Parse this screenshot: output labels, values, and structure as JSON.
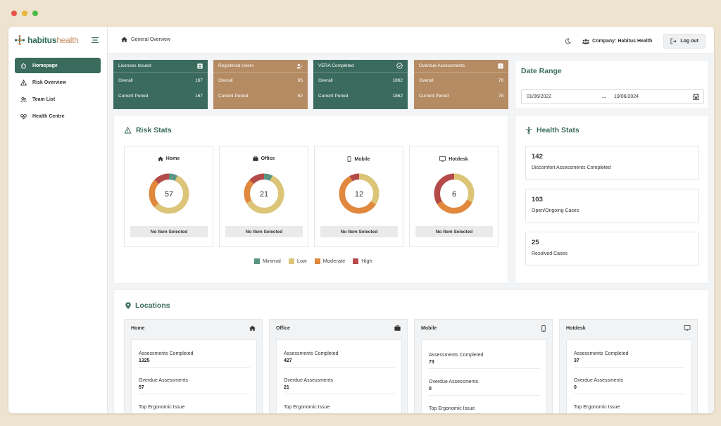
{
  "brand": {
    "name_bold": "habitus",
    "name_light": "health"
  },
  "sidebar": {
    "items": [
      {
        "label": "Homepage",
        "icon": "home-icon",
        "active": true
      },
      {
        "label": "Risk Overview",
        "icon": "warning-icon",
        "active": false
      },
      {
        "label": "Team List",
        "icon": "users-icon",
        "active": false
      },
      {
        "label": "Health Centre",
        "icon": "heart-icon",
        "active": false
      }
    ]
  },
  "header": {
    "breadcrumb": "General Overview",
    "company": "Company: Habitus Health",
    "logout": "Log out"
  },
  "kpis": [
    {
      "title": "Licenses Issued",
      "overall_label": "Overall",
      "overall": "167",
      "period_label": "Current Period",
      "period": "167",
      "color": "#3a6b5c"
    },
    {
      "title": "Registered Users",
      "overall_label": "Overall",
      "overall": "65",
      "period_label": "Current Period",
      "period": "62",
      "color": "#b58b63"
    },
    {
      "title": "VERA Completed",
      "overall_label": "Overall",
      "overall": "1862",
      "period_label": "Current Period",
      "period": "1862",
      "color": "#3a6b5c"
    },
    {
      "title": "Overdue Assessments",
      "overall_label": "Overall",
      "overall": "78",
      "period_label": "Current Period",
      "period": "78",
      "color": "#b58b63"
    }
  ],
  "date_range": {
    "title": "Date Range",
    "start": "01/06/2022",
    "end": "19/06/2024"
  },
  "risk_stats": {
    "title": "Risk Stats",
    "boxes": [
      {
        "title": "Home",
        "total": "57",
        "footer": "No Item Selected",
        "segments": [
          0.07,
          0.56,
          0.24,
          0.13
        ]
      },
      {
        "title": "Office",
        "total": "21",
        "footer": "No Item Selected",
        "segments": [
          0.07,
          0.6,
          0.2,
          0.13
        ]
      },
      {
        "title": "Mobile",
        "total": "12",
        "footer": "No Item Selected",
        "segments": [
          0.0,
          0.34,
          0.58,
          0.08
        ]
      },
      {
        "title": "Hotdesk",
        "total": "6",
        "footer": "No Item Selected",
        "segments": [
          0.0,
          0.32,
          0.34,
          0.34
        ]
      }
    ],
    "legend": [
      {
        "label": "Minimal",
        "color": "#5b9484"
      },
      {
        "label": "Low",
        "color": "#dcc478"
      },
      {
        "label": "Moderate",
        "color": "#e0883d"
      },
      {
        "label": "High",
        "color": "#b54a4a"
      }
    ]
  },
  "health_stats": {
    "title": "Health Stats",
    "items": [
      {
        "value": "142",
        "label": "Discomfort Assessments Completed"
      },
      {
        "value": "103",
        "label": "Open/Ongoing Cases"
      },
      {
        "value": "25",
        "label": "Resolved Cases"
      }
    ]
  },
  "locations": {
    "title": "Locations",
    "columns": [
      {
        "name": "Home",
        "icon": "home-icon",
        "assessments_label": "Assessments Completed",
        "assessments": "1325",
        "overdue_label": "Overdue Assessments",
        "overdue": "57",
        "issue_label": "Top Ergonomic Issue"
      },
      {
        "name": "Office",
        "icon": "briefcase-icon",
        "assessments_label": "Assessments Completed",
        "assessments": "427",
        "overdue_label": "Overdue Assessments",
        "overdue": "21",
        "issue_label": "Top Ergonomic Issue"
      },
      {
        "name": "Mobile",
        "icon": "phone-icon",
        "assessments_label": "Assessments Completed",
        "assessments": "73",
        "overdue_label": "Overdue Assessments",
        "overdue": "0",
        "issue_label": "Top Ergonomic Issue"
      },
      {
        "name": "Hotdesk",
        "icon": "monitor-icon",
        "assessments_label": "Assessments Completed",
        "assessments": "37",
        "overdue_label": "Overdue Assessments",
        "overdue": "0",
        "issue_label": "Top Ergonomic Issue"
      }
    ]
  }
}
